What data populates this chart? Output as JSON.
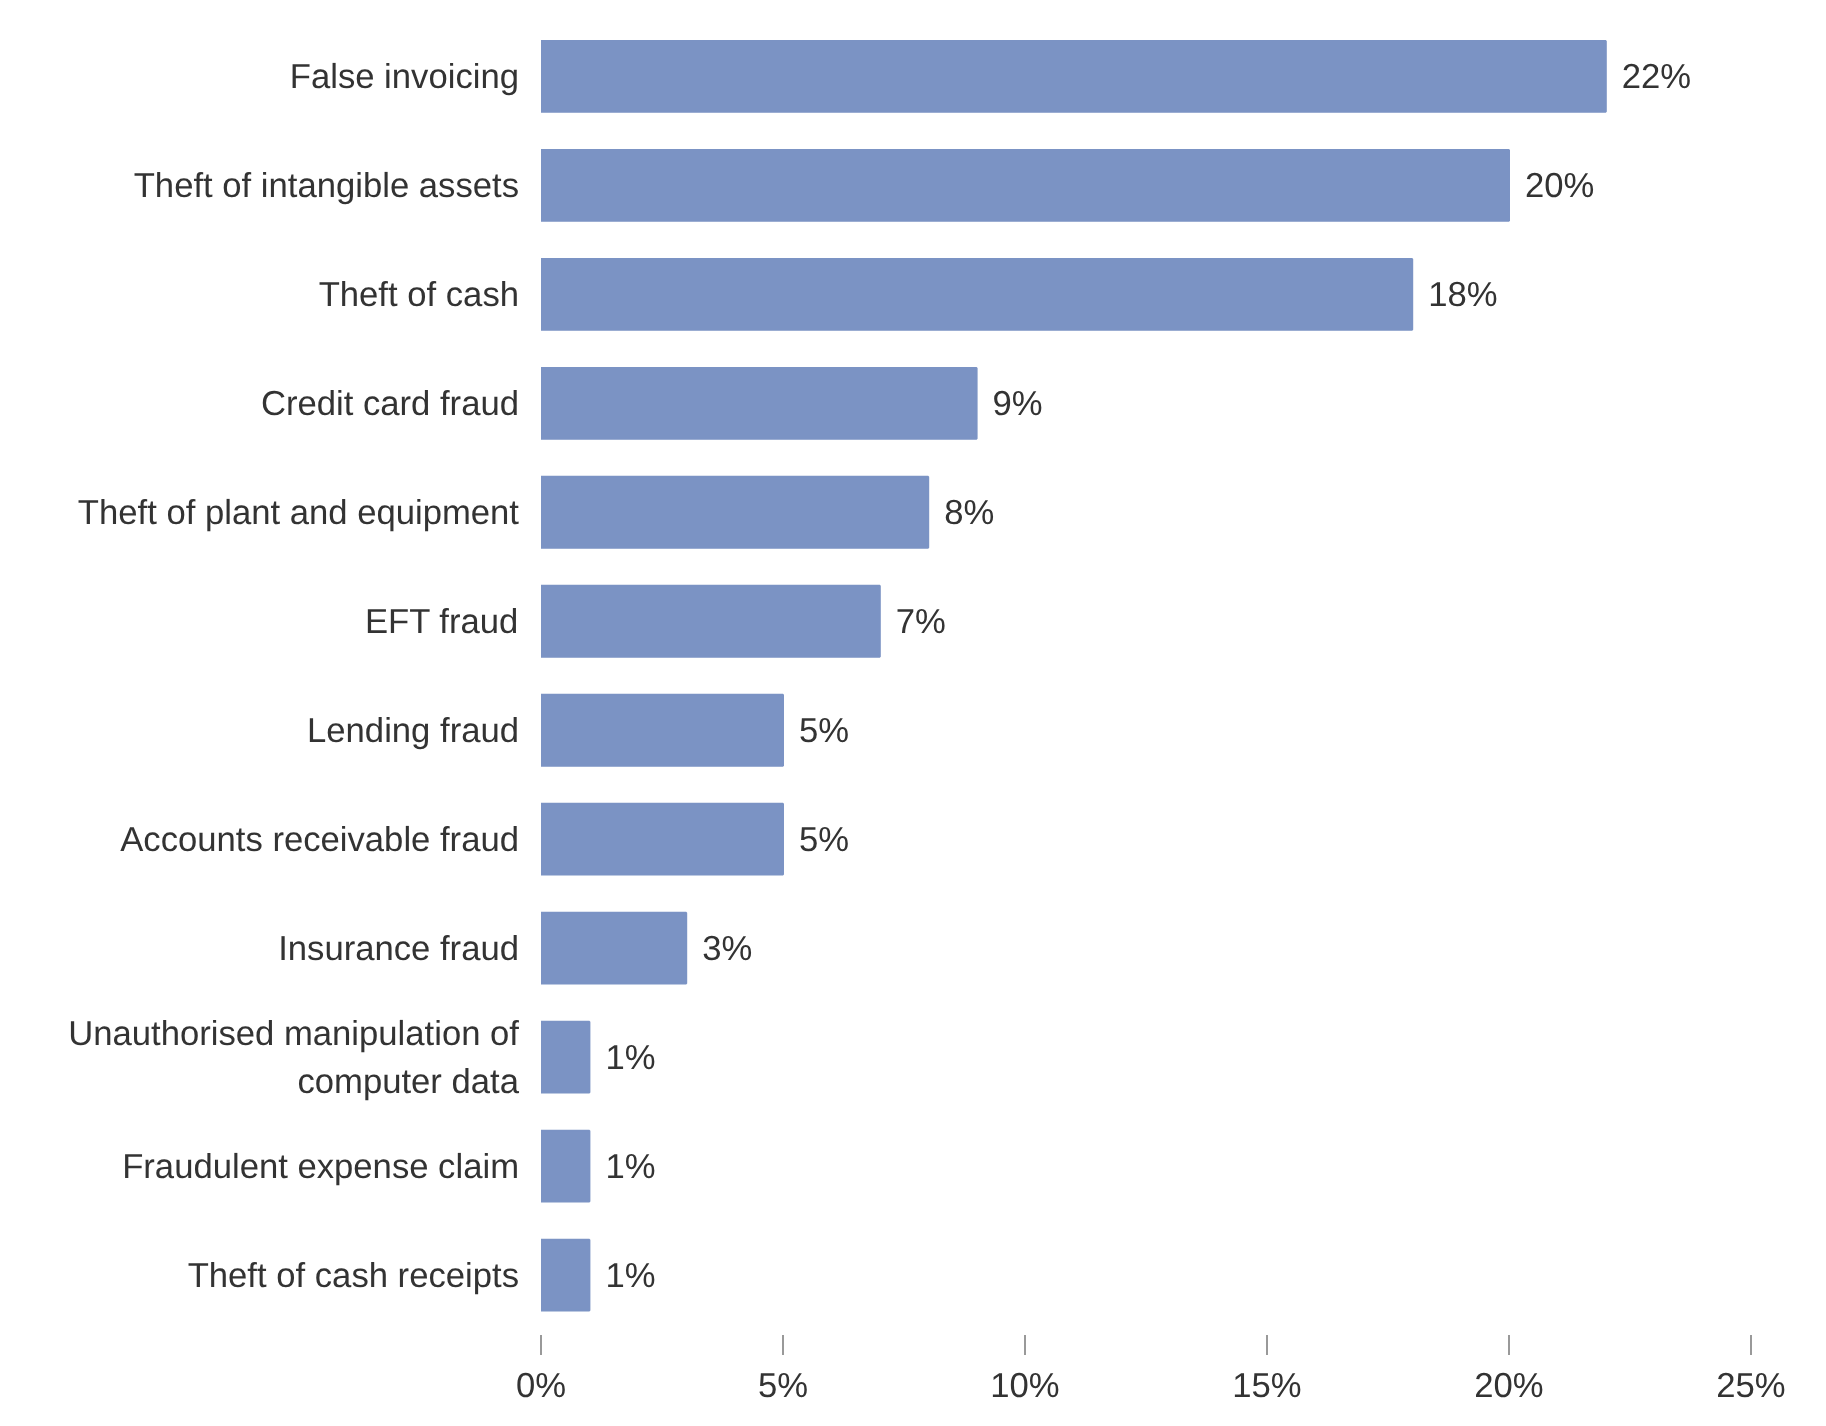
{
  "chart_data": {
    "type": "bar",
    "orientation": "horizontal",
    "categories": [
      "False invoicing",
      "Theft of intangible assets",
      "Theft of cash",
      "Credit card fraud",
      "Theft of plant and equipment",
      "EFT fraud",
      "Lending fraud",
      "Accounts receivable fraud",
      "Insurance fraud",
      "Unauthorised manipulation of computer data",
      "Fraudulent expense claim",
      "Theft of cash receipts"
    ],
    "values": [
      22,
      20,
      18,
      9,
      8,
      7,
      5,
      5,
      3,
      1,
      1,
      1
    ],
    "value_labels": [
      "22%",
      "20%",
      "18%",
      "9%",
      "8%",
      "7%",
      "5%",
      "5%",
      "3%",
      "1%",
      "1%",
      "1%"
    ],
    "color": "#7b93c4",
    "xlim": [
      0,
      25
    ],
    "xticks": [
      {
        "value": 0,
        "label": "0%"
      },
      {
        "value": 5,
        "label": "5%"
      },
      {
        "value": 10,
        "label": "10%"
      },
      {
        "value": 15,
        "label": "15%"
      },
      {
        "value": 20,
        "label": "20%"
      },
      {
        "value": 25,
        "label": "25%"
      }
    ],
    "grid": false
  }
}
